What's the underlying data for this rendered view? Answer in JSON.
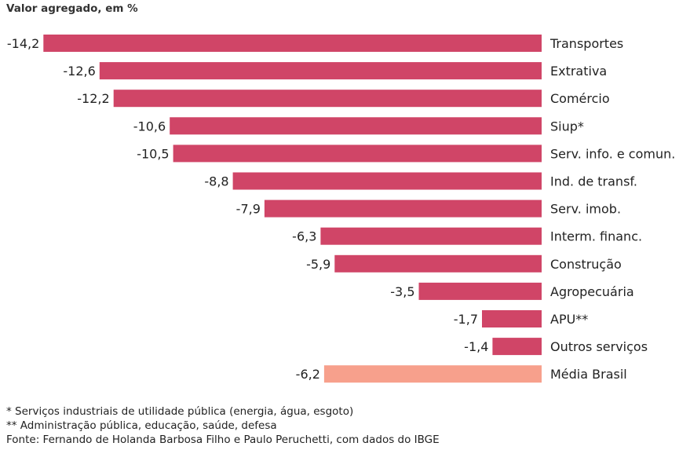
{
  "chart_data": {
    "type": "bar",
    "orientation": "horizontal",
    "subtitle": "Valor agregado, em %",
    "categories": [
      "Transportes",
      "Extrativa",
      "Comércio",
      "Siup*",
      "Serv. info. e comun.",
      "Ind. de transf.",
      "Serv. imob.",
      "Interm. financ.",
      "Construção",
      "Agropecuária",
      "APU**",
      "Outros serviços",
      "Média Brasil"
    ],
    "values": [
      -14.2,
      -12.6,
      -12.2,
      -10.6,
      -10.5,
      -8.8,
      -7.9,
      -6.3,
      -5.9,
      -3.5,
      -1.7,
      -1.4,
      -6.2
    ],
    "value_labels": [
      "-14,2",
      "-12,6",
      "-12,2",
      "-10,6",
      "-10,5",
      "-8,8",
      "-7,9",
      "-6,3",
      "-5,9",
      "-3,5",
      "-1,7",
      "-1,4",
      "-6,2"
    ],
    "highlight_category": "Média Brasil",
    "colors": {
      "bar": "#d04567",
      "highlight": "#f7a08c"
    },
    "grid": false,
    "legend": "none"
  },
  "notes": {
    "note1": "* Serviços industriais de utilidade pública (energia, água, esgoto)",
    "note2": "** Administração pública, educação, saúde, defesa",
    "source": "Fonte: Fernando de Holanda Barbosa Filho e Paulo Peruchetti, com dados do IBGE"
  }
}
